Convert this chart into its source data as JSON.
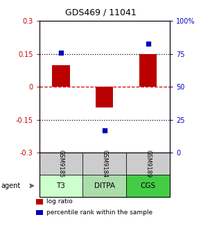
{
  "title": "GDS469 / 11041",
  "samples": [
    "GSM9185",
    "GSM9184",
    "GSM9189"
  ],
  "agents": [
    "T3",
    "DITPA",
    "CGS"
  ],
  "log_ratios": [
    0.1,
    -0.095,
    0.15
  ],
  "percentile_ranks": [
    76,
    17,
    83
  ],
  "bar_color": "#bb0000",
  "dot_color": "#0000bb",
  "ylim_left": [
    -0.3,
    0.3
  ],
  "ylim_right": [
    0,
    100
  ],
  "yticks_left": [
    -0.3,
    -0.15,
    0,
    0.15,
    0.3
  ],
  "yticks_right": [
    0,
    25,
    50,
    75,
    100
  ],
  "yticklabels_right": [
    "0",
    "25",
    "50",
    "75",
    "100%"
  ],
  "hlines_dotted": [
    -0.15,
    0.15
  ],
  "hline_zero_color": "#cc0000",
  "hline_dotted_color": "#000000",
  "agent_colors": [
    "#ccffcc",
    "#aaddaa",
    "#44cc44"
  ],
  "sample_bg_color": "#cccccc",
  "left_axis_color": "#cc0000",
  "right_axis_color": "#0000cc",
  "bar_width": 0.4,
  "legend_red_label": "log ratio",
  "legend_blue_label": "percentile rank within the sample"
}
